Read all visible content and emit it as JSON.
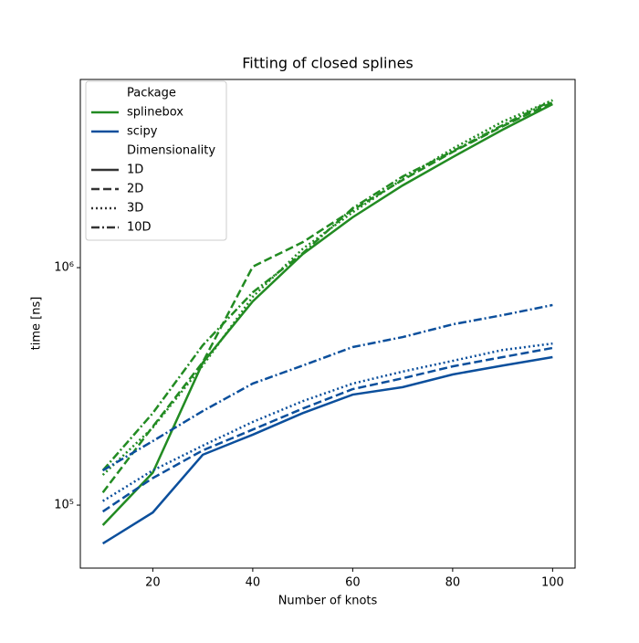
{
  "chart_data": {
    "type": "line",
    "title": "Fitting of closed splines",
    "xlabel": "Number of knots",
    "ylabel": "time [ns]",
    "x": [
      10,
      20,
      30,
      40,
      50,
      60,
      70,
      80,
      90,
      100
    ],
    "xlim": [
      5.5,
      104.5
    ],
    "xticks": [
      20,
      40,
      60,
      80,
      100
    ],
    "yscale": "log",
    "ylim": [
      54300,
      6200000
    ],
    "yticks": [
      {
        "value": 100000,
        "label": "10⁵"
      },
      {
        "value": 1000000,
        "label": "10⁶"
      }
    ],
    "legend": {
      "corner": "upper left",
      "hue_title": "Package",
      "hue": [
        {
          "name": "splinebox",
          "color": "#228b22"
        },
        {
          "name": "scipy",
          "color": "#0b4f9c"
        }
      ],
      "style_title": "Dimensionality",
      "style": [
        {
          "name": "1D",
          "dash": "solid"
        },
        {
          "name": "2D",
          "dash": "dashed"
        },
        {
          "name": "3D",
          "dash": "dotted"
        },
        {
          "name": "10D",
          "dash": "dashdot"
        }
      ]
    },
    "series": [
      {
        "hue": "splinebox",
        "style": "1D",
        "values": [
          82300,
          137000,
          398000,
          721000,
          1140000,
          1630000,
          2220000,
          2920000,
          3810000,
          4880000
        ]
      },
      {
        "hue": "splinebox",
        "style": "2D",
        "values": [
          113000,
          214000,
          400000,
          1010000,
          1280000,
          1750000,
          2340000,
          3070000,
          3940000,
          4970000
        ]
      },
      {
        "hue": "splinebox",
        "style": "3D",
        "values": [
          134000,
          212000,
          387000,
          754000,
          1200000,
          1710000,
          2360000,
          3170000,
          4120000,
          5070000
        ]
      },
      {
        "hue": "splinebox",
        "style": "10D",
        "values": [
          140000,
          244000,
          471000,
          787000,
          1150000,
          1780000,
          2420000,
          3090000,
          3980000,
          5070000
        ]
      },
      {
        "hue": "scipy",
        "style": "1D",
        "values": [
          68900,
          93100,
          163000,
          198000,
          244000,
          292000,
          314000,
          355000,
          387000,
          420000
        ]
      },
      {
        "hue": "scipy",
        "style": "2D",
        "values": [
          94000,
          130000,
          170000,
          208000,
          255000,
          308000,
          342000,
          384000,
          420000,
          459000
        ]
      },
      {
        "hue": "scipy",
        "style": "3D",
        "values": [
          104000,
          140000,
          178000,
          224000,
          274000,
          325000,
          365000,
          405000,
          450000,
          479000
        ]
      },
      {
        "hue": "scipy",
        "style": "10D",
        "values": [
          140000,
          186000,
          249000,
          325000,
          387000,
          463000,
          510000,
          577000,
          631000,
          696000
        ]
      }
    ]
  }
}
